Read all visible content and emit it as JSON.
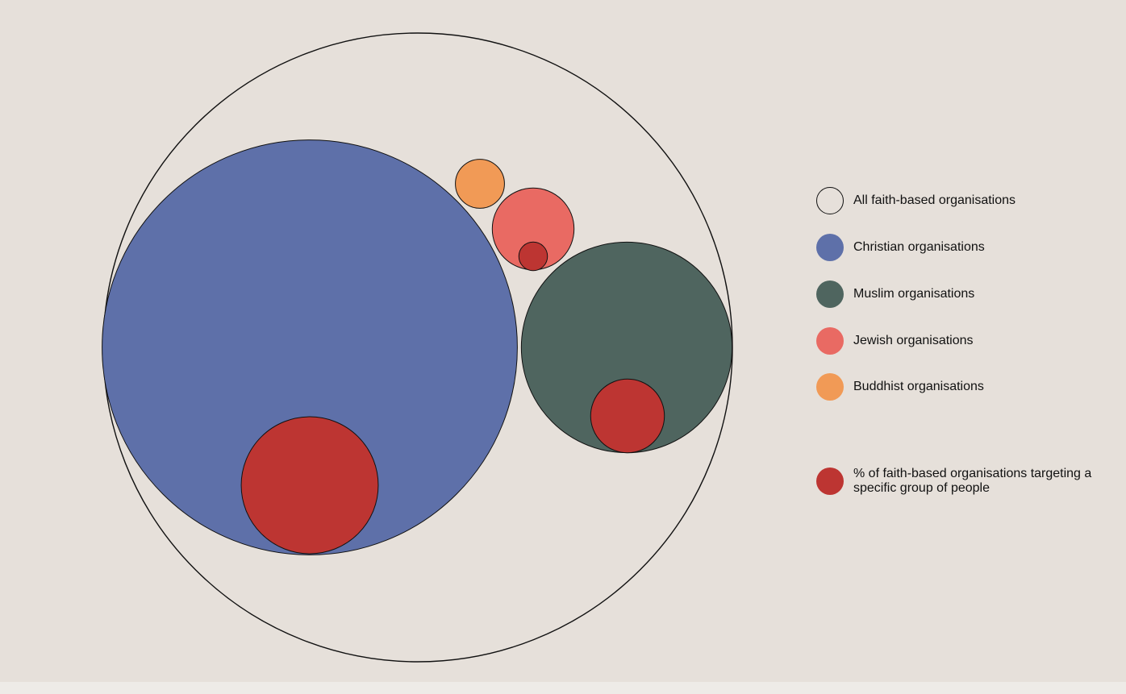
{
  "chart_data": {
    "type": "packed-bubble",
    "circles": [
      {
        "name": "All faith-based organisations",
        "relative_size": 1.0,
        "color": "#e6e0da",
        "stroke": "#111111"
      },
      {
        "name": "Christian organisations",
        "relative_size": 0.66,
        "color": "#5e70a9",
        "stroke": "#111111"
      },
      {
        "name": "Muslim organisations",
        "relative_size": 0.335,
        "color": "#4f655f",
        "stroke": "#111111"
      },
      {
        "name": "Jewish organisations",
        "relative_size": 0.13,
        "color": "#e96a63",
        "stroke": "#111111"
      },
      {
        "name": "Buddhist organisations",
        "relative_size": 0.078,
        "color": "#f19a56",
        "stroke": "#111111"
      }
    ],
    "subgroups": [
      {
        "parent": "Christian organisations",
        "relative_size": 0.33,
        "color": "#bd3532"
      },
      {
        "parent": "Muslim organisations",
        "relative_size": 0.35,
        "color": "#bd3532"
      },
      {
        "parent": "Jewish organisations",
        "relative_size": 0.35,
        "color": "#bd3532"
      }
    ],
    "subgroup_label": "% of faith-based organisations targeting a specific group of people",
    "legend_position": "right"
  },
  "legend": {
    "items": [
      {
        "label": "All faith-based organisations",
        "color": "#e6e0da",
        "outline": true
      },
      {
        "label": "Christian organisations",
        "color": "#5e70a9",
        "outline": false
      },
      {
        "label": "Muslim organisations",
        "color": "#4f655f",
        "outline": false
      },
      {
        "label": "Jewish organisations",
        "color": "#e96a63",
        "outline": false
      },
      {
        "label": "Buddhist organisations",
        "color": "#f19a56",
        "outline": false
      },
      {
        "label": "% of faith-based organisations targeting a specific group of people",
        "color": "#bd3532",
        "outline": false
      }
    ]
  }
}
